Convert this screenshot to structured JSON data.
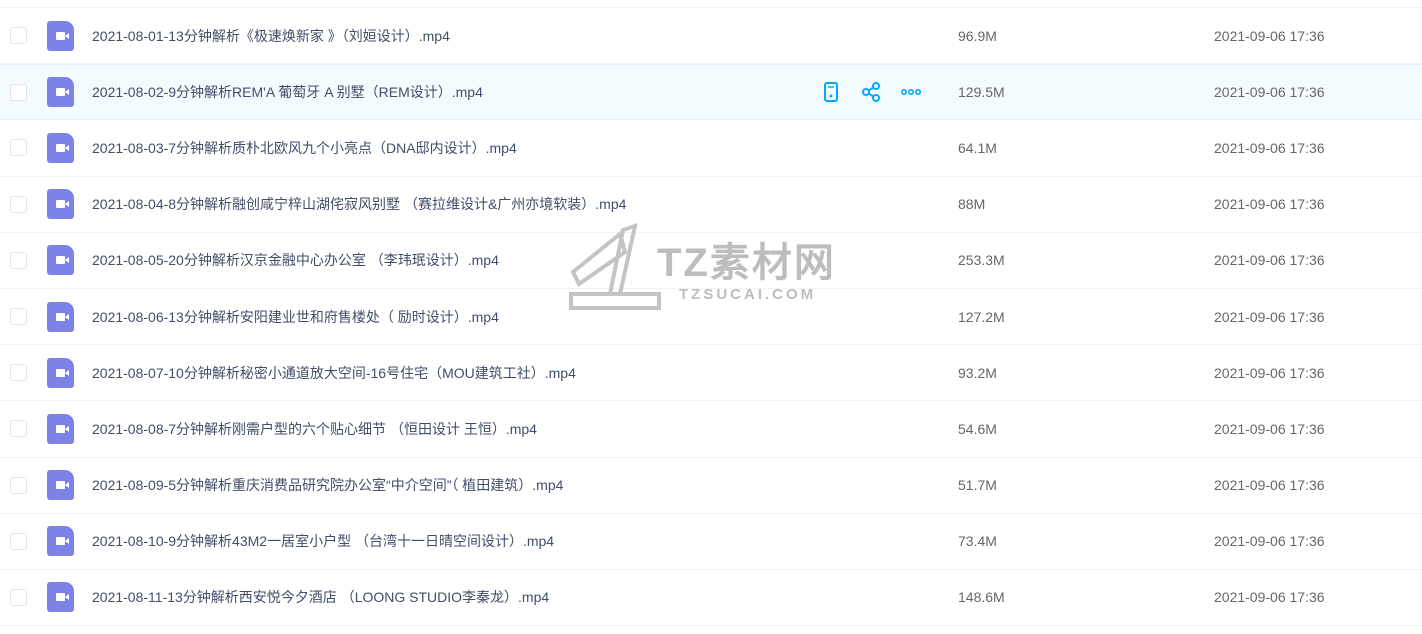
{
  "files": [
    {
      "name": "2021-08-01-13分钟解析《极速焕新家 》（刘姮设计）.mp4",
      "size": "96.9M",
      "date": "2021-09-06 17:36"
    },
    {
      "name": "2021-08-02-9分钟解析REM'A 葡萄牙 A 别墅（REM设计）.mp4",
      "size": "129.5M",
      "date": "2021-09-06 17:36"
    },
    {
      "name": "2021-08-03-7分钟解析质朴北欧风九个小亮点（DNA邸内设计）.mp4",
      "size": "64.1M",
      "date": "2021-09-06 17:36"
    },
    {
      "name": "2021-08-04-8分钟解析融创咸宁梓山湖侘寂风别墅 （赛拉维设计&广州亦境软装）.mp4",
      "size": "88M",
      "date": "2021-09-06 17:36"
    },
    {
      "name": "2021-08-05-20分钟解析汉京金融中心办公室 （李玮珉设计）.mp4",
      "size": "253.3M",
      "date": "2021-09-06 17:36"
    },
    {
      "name": "2021-08-06-13分钟解析安阳建业世和府售楼处（ 励时设计）.mp4",
      "size": "127.2M",
      "date": "2021-09-06 17:36"
    },
    {
      "name": "2021-08-07-10分钟解析秘密小通道放大空间-16号住宅（MOU建筑工社）.mp4",
      "size": "93.2M",
      "date": "2021-09-06 17:36"
    },
    {
      "name": "2021-08-08-7分钟解析刚需户型的六个贴心细节 （恒田设计 王恒）.mp4",
      "size": "54.6M",
      "date": "2021-09-06 17:36"
    },
    {
      "name": "2021-08-09-5分钟解析重庆消费品研究院办公室“中介空间”（ 植田建筑）.mp4",
      "size": "51.7M",
      "date": "2021-09-06 17:36"
    },
    {
      "name": "2021-08-10-9分钟解析43M2一居室小户型 （台湾十一日晴空间设计）.mp4",
      "size": "73.4M",
      "date": "2021-09-06 17:36"
    },
    {
      "name": "2021-08-11-13分钟解析西安悦今夕酒店 （LOONG STUDIO李秦龙）.mp4",
      "size": "148.6M",
      "date": "2021-09-06 17:36"
    }
  ],
  "hovered_row": 1,
  "row_actions": [
    "phone-icon",
    "share-icon",
    "more-icon"
  ],
  "colors": {
    "file_icon": "#7d82e8",
    "action": "#06a7ff",
    "hover_bg": "#f4fbff"
  },
  "watermark": {
    "title": "TZ素材网",
    "subtitle": "TZSUCAI.COM"
  }
}
